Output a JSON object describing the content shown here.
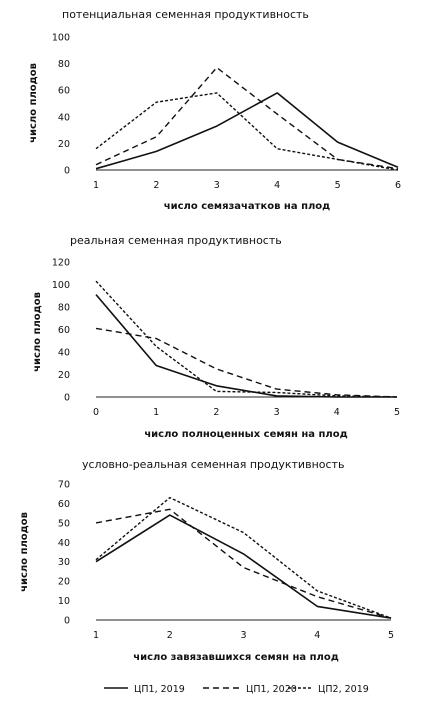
{
  "chart_data": [
    {
      "type": "line",
      "title": "потенциальная семенная продуктивность",
      "xlabel": "число семязачатков на плод",
      "ylabel": "число плодов",
      "x": [
        1,
        2,
        3,
        4,
        5,
        6
      ],
      "ylim": [
        0,
        100
      ],
      "yticks": [
        0,
        20,
        40,
        60,
        80,
        100
      ],
      "series": [
        {
          "name": "ЦП1, 2019",
          "values": [
            1,
            14,
            33,
            58,
            21,
            2
          ]
        },
        {
          "name": "ЦП1, 2020",
          "values": [
            4,
            25,
            77,
            42,
            8,
            1
          ]
        },
        {
          "name": "ЦП2, 2019",
          "values": [
            16,
            51,
            58,
            16,
            8,
            0
          ]
        }
      ]
    },
    {
      "type": "line",
      "title": "реальная семенная продуктивность",
      "xlabel": "число полноценных семян на плод",
      "ylabel": "число плодов",
      "x": [
        0,
        1,
        2,
        3,
        4,
        5
      ],
      "ylim": [
        0,
        120
      ],
      "yticks": [
        0,
        20,
        40,
        60,
        80,
        100,
        120
      ],
      "series": [
        {
          "name": "ЦП1, 2019",
          "values": [
            91,
            28,
            10,
            1,
            0,
            0
          ]
        },
        {
          "name": "ЦП1, 2020",
          "values": [
            61,
            52,
            25,
            7,
            2,
            0
          ]
        },
        {
          "name": "ЦП2, 2019",
          "values": [
            103,
            45,
            5,
            4,
            1,
            0
          ]
        }
      ]
    },
    {
      "type": "line",
      "title": "условно-реальная семенная продуктивность",
      "xlabel": "число завязавшихся семян на плод",
      "ylabel": "число плодов",
      "x": [
        1,
        2,
        3,
        4,
        5
      ],
      "ylim": [
        0,
        70
      ],
      "yticks": [
        0,
        10,
        20,
        30,
        40,
        50,
        60,
        70
      ],
      "series": [
        {
          "name": "ЦП1, 2019",
          "values": [
            30,
            54,
            34,
            7,
            1
          ]
        },
        {
          "name": "ЦП1, 2020",
          "values": [
            50,
            57,
            27,
            12,
            1
          ]
        },
        {
          "name": "ЦП2, 2019",
          "values": [
            31,
            63,
            45,
            15,
            1
          ]
        }
      ]
    }
  ],
  "legend": [
    {
      "label": "ЦП1, 2019",
      "style": "solid"
    },
    {
      "label": "ЦП1, 2020",
      "style": "dashed"
    },
    {
      "label": "ЦП2, 2019",
      "style": "dotted"
    }
  ],
  "colors": {
    "line": "#111111",
    "axis": "#222222",
    "background": "#ffffff"
  }
}
